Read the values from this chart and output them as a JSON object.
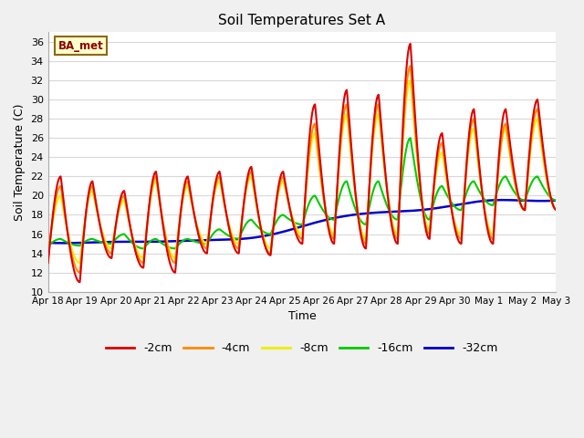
{
  "title": "Soil Temperatures Set A",
  "xlabel": "Time",
  "ylabel": "Soil Temperature (C)",
  "ylim": [
    10,
    37
  ],
  "yticks": [
    10,
    12,
    14,
    16,
    18,
    20,
    22,
    24,
    26,
    28,
    30,
    32,
    34,
    36
  ],
  "annotation": "BA_met",
  "fig_bg_color": "#f0f0f0",
  "plot_bg_color": "#ffffff",
  "grid_color": "#d8d8d8",
  "series_colors": {
    "-2cm": "#dd0000",
    "-4cm": "#ff8800",
    "-8cm": "#eeee00",
    "-16cm": "#00cc00",
    "-32cm": "#0000cc"
  },
  "x_tick_labels": [
    "Apr 18",
    "Apr 19",
    "Apr 20",
    "Apr 21",
    "Apr 22",
    "Apr 23",
    "Apr 24",
    "Apr 25",
    "Apr 26",
    "Apr 27",
    "Apr 28",
    "Apr 29",
    "Apr 30",
    "May 1",
    "May 2",
    "May 3"
  ],
  "x_tick_positions": [
    0,
    1,
    2,
    3,
    4,
    5,
    6,
    7,
    8,
    9,
    10,
    11,
    12,
    13,
    14,
    15
  ],
  "legend_entries": [
    "-2cm",
    "-4cm",
    "-8cm",
    "-16cm",
    "-32cm"
  ]
}
